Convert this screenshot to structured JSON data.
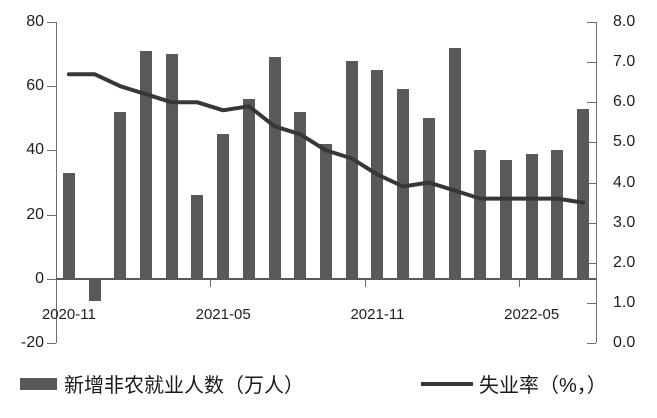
{
  "chart_data": {
    "type": "combo-bar-line",
    "title": "",
    "categories": [
      "2020-11",
      "2020-12",
      "2021-01",
      "2021-02",
      "2021-03",
      "2021-04",
      "2021-05",
      "2021-06",
      "2021-07",
      "2021-08",
      "2021-09",
      "2021-10",
      "2021-11",
      "2021-12",
      "2022-01",
      "2022-02",
      "2022-03",
      "2022-04",
      "2022-05",
      "2022-06",
      "2022-07"
    ],
    "series": [
      {
        "name": "新增非农就业人数（万人）",
        "type": "bar",
        "axis": "left",
        "color": "#595959",
        "values": [
          33,
          -7,
          52,
          71,
          70,
          26,
          45,
          56,
          69,
          52,
          42,
          68,
          65,
          59,
          50,
          72,
          40,
          37,
          39,
          40,
          53
        ]
      },
      {
        "name": "失业率（%，）",
        "type": "line",
        "axis": "right",
        "color": "#373737",
        "values": [
          6.7,
          6.7,
          6.4,
          6.2,
          6.0,
          6.0,
          5.8,
          5.9,
          5.4,
          5.2,
          4.8,
          4.6,
          4.2,
          3.9,
          4.0,
          3.8,
          3.6,
          3.6,
          3.6,
          3.6,
          3.5
        ]
      }
    ],
    "left_axis": {
      "min": -20,
      "max": 80,
      "ticks": [
        {
          "v": 80,
          "label": "80"
        },
        {
          "v": 60,
          "label": "60"
        },
        {
          "v": 40,
          "label": "40"
        },
        {
          "v": 20,
          "label": "20"
        },
        {
          "v": 0,
          "label": "0"
        },
        {
          "v": -20,
          "label": "-20"
        }
      ]
    },
    "right_axis": {
      "min": 0,
      "max": 8,
      "ticks": [
        {
          "v": 8,
          "label": "8.0"
        },
        {
          "v": 7,
          "label": "7.0"
        },
        {
          "v": 6,
          "label": "6.0"
        },
        {
          "v": 5,
          "label": "5.0"
        },
        {
          "v": 4,
          "label": "4.0"
        },
        {
          "v": 3,
          "label": "3.0"
        },
        {
          "v": 2,
          "label": "2.0"
        },
        {
          "v": 1,
          "label": "1.0"
        },
        {
          "v": 0,
          "label": "0.0"
        }
      ]
    },
    "x_ticks": [
      {
        "idx": 0,
        "label": "2020-11"
      },
      {
        "idx": 6,
        "label": "2021-05"
      },
      {
        "idx": 12,
        "label": "2021-11"
      },
      {
        "idx": 18,
        "label": "2022-05"
      }
    ],
    "legend": [
      {
        "label": "新增非农就业人数（万人）",
        "swatch": "bar"
      },
      {
        "label": "失业率（%，）",
        "swatch": "line"
      }
    ],
    "grid": false,
    "legend_position": "bottom"
  }
}
